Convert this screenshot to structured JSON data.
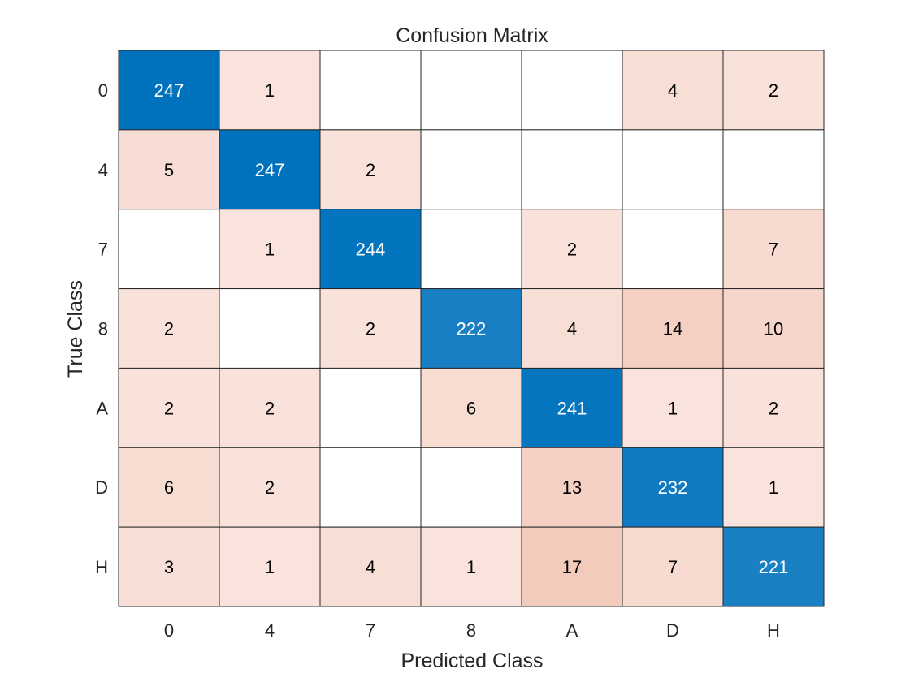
{
  "chart_data": {
    "type": "heatmap",
    "title": "Confusion Matrix",
    "xlabel": "Predicted Class",
    "ylabel": "True Class",
    "row_labels": [
      "0",
      "4",
      "7",
      "8",
      "A",
      "D",
      "H"
    ],
    "col_labels": [
      "0",
      "4",
      "7",
      "8",
      "A",
      "D",
      "H"
    ],
    "values": [
      [
        247,
        1,
        null,
        null,
        null,
        4,
        2
      ],
      [
        5,
        247,
        2,
        null,
        null,
        null,
        null
      ],
      [
        null,
        1,
        244,
        null,
        2,
        null,
        7
      ],
      [
        2,
        null,
        2,
        222,
        4,
        14,
        10
      ],
      [
        2,
        2,
        null,
        6,
        241,
        1,
        2
      ],
      [
        6,
        2,
        null,
        null,
        13,
        232,
        1
      ],
      [
        3,
        1,
        4,
        1,
        17,
        7,
        221
      ]
    ],
    "colors": {
      "diagonal_high": "#0072bd",
      "diagonal_low": "#1a80c4",
      "offdiag_low": "#f9e3dc",
      "offdiag_high": "#f3cbbd",
      "empty": "#ffffff",
      "grid": "#262626",
      "text_dark": "#000000",
      "text_light": "#ffffff"
    }
  }
}
